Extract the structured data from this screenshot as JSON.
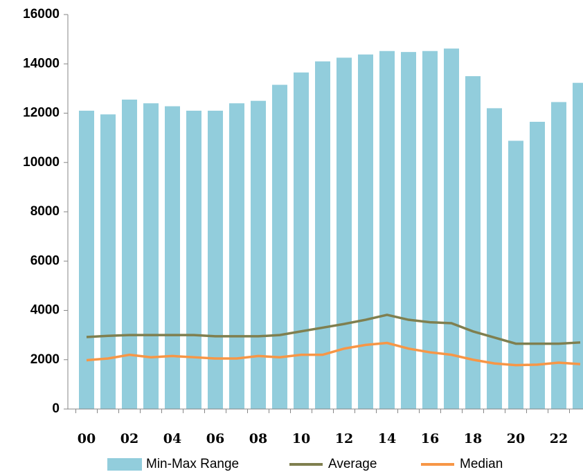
{
  "chart_data": {
    "type": "bar",
    "categories": [
      "00",
      null,
      "02",
      null,
      "04",
      null,
      "06",
      null,
      "08",
      null,
      "10",
      null,
      "12",
      null,
      "14",
      null,
      "16",
      null,
      "18",
      null,
      "20",
      null,
      "22",
      null
    ],
    "series": [
      {
        "name": "Min-Max Range",
        "type": "bar",
        "color": "#92cddc",
        "values": [
          12100,
          11950,
          12550,
          12400,
          12280,
          12100,
          12100,
          12400,
          12500,
          13150,
          13650,
          14100,
          14250,
          14380,
          14520,
          14480,
          14520,
          14620,
          13500,
          12200,
          10880,
          11650,
          12450,
          13230
        ]
      },
      {
        "name": "Average",
        "type": "line",
        "color": "#7f7f4f",
        "values": [
          2920,
          2970,
          3000,
          3000,
          3000,
          3000,
          2950,
          2950,
          2950,
          3000,
          3150,
          3300,
          3450,
          3620,
          3820,
          3620,
          3520,
          3480,
          3150,
          2900,
          2650,
          2650,
          2650,
          2700
        ]
      },
      {
        "name": "Median",
        "type": "line",
        "color": "#f79646",
        "values": [
          1980,
          2050,
          2200,
          2100,
          2150,
          2100,
          2050,
          2050,
          2150,
          2100,
          2200,
          2200,
          2450,
          2600,
          2680,
          2450,
          2300,
          2200,
          2000,
          1850,
          1780,
          1800,
          1880,
          1820
        ]
      }
    ],
    "ylim": [
      0,
      16000
    ],
    "yticks": [
      0,
      2000,
      4000,
      6000,
      8000,
      10000,
      12000,
      14000,
      16000
    ],
    "legend": "bottom"
  }
}
